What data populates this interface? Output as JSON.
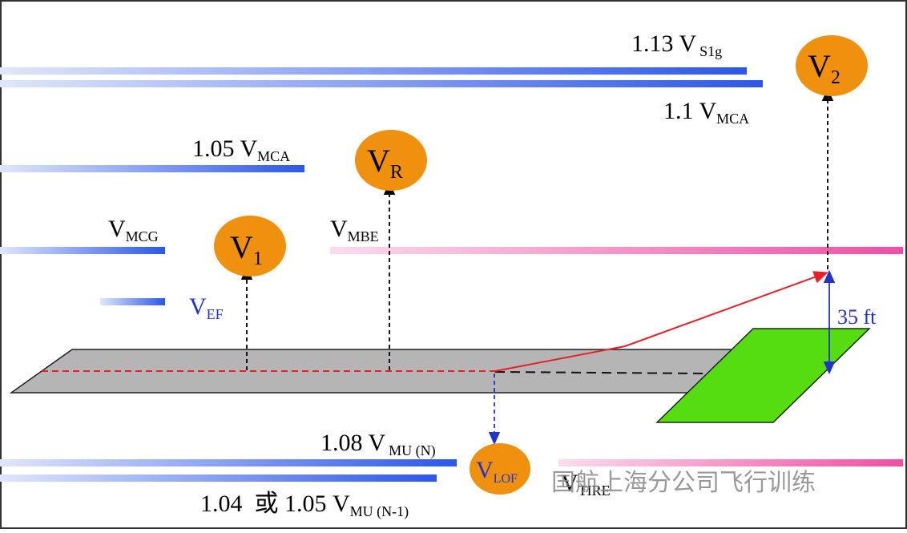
{
  "speed_labels": [
    {
      "main": "1.13 V",
      "sub": "S1g"
    },
    {
      "main": "1.1 V",
      "sub": "MCA"
    },
    {
      "main": "1.05 V",
      "sub": "MCA"
    },
    {
      "main": "V",
      "sub": "MCG"
    },
    {
      "main": "V",
      "sub": "MBE"
    },
    {
      "main": "V",
      "sub": "EF"
    },
    {
      "main": "1.08 V",
      "sub": "MU (N)"
    },
    {
      "main": "1.04  或 1.05 V",
      "sub": "MU (N-1)"
    },
    {
      "main": "V",
      "sub": "TIRE"
    }
  ],
  "bubbles": [
    {
      "main": "V",
      "sub": "1"
    },
    {
      "main": "V",
      "sub": "R"
    },
    {
      "main": "V",
      "sub": "2"
    },
    {
      "main": "V",
      "sub": "LOF"
    }
  ],
  "screen_height": "35 ft",
  "watermark": "国航上海分公司飞行训练"
}
